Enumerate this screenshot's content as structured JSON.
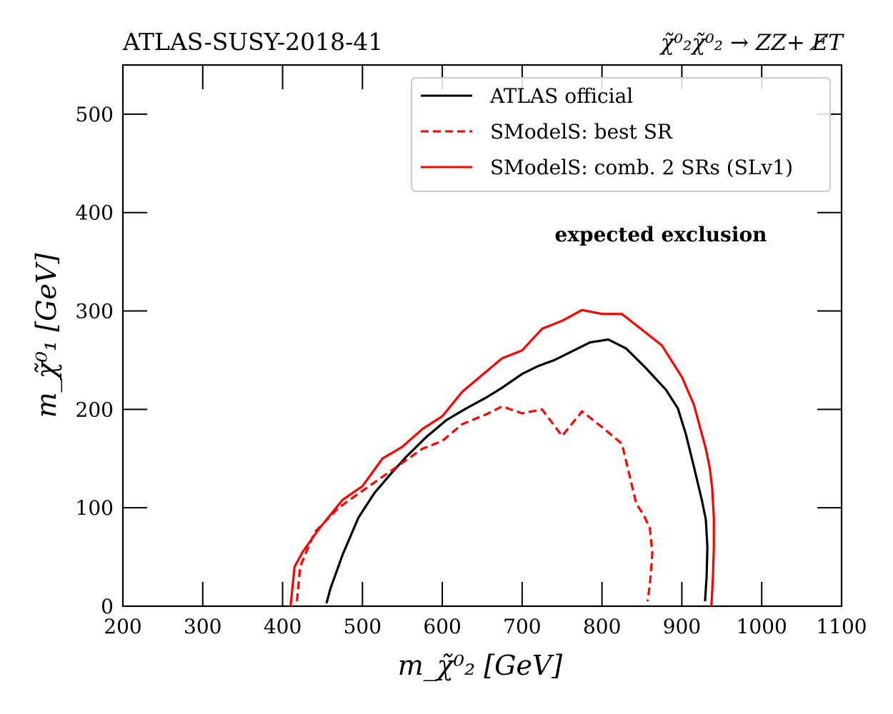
{
  "chart_data": {
    "type": "line",
    "title_left": "ATLAS-SUSY-2018-41",
    "title_right": "χ̃⁰₂χ̃⁰₂ → ZZ+ E̸T",
    "xlabel": "m_χ̃⁰₂ [GeV]",
    "ylabel": "m_χ̃⁰₁ [GeV]",
    "xlim": [
      200,
      1100
    ],
    "ylim": [
      0,
      550
    ],
    "xticks": [
      200,
      300,
      400,
      500,
      600,
      700,
      800,
      900,
      1000,
      1100
    ],
    "yticks": [
      0,
      100,
      200,
      300,
      400,
      500
    ],
    "annotation": "expected exclusion",
    "legend_position": "top-right",
    "series": [
      {
        "name": "ATLAS official",
        "color": "#000000",
        "style": "solid",
        "x": [
          455,
          460,
          475,
          495,
          515,
          535,
          555,
          580,
          605,
          630,
          655,
          675,
          700,
          720,
          740,
          760,
          785,
          808,
          830,
          855,
          880,
          895,
          905,
          915,
          925,
          930,
          932,
          931,
          929
        ],
        "y": [
          3,
          18,
          52,
          90,
          115,
          134,
          152,
          172,
          189,
          201,
          212,
          222,
          236,
          244,
          250,
          258,
          268,
          271,
          262,
          242,
          220,
          201,
          175,
          142,
          108,
          88,
          60,
          30,
          5
        ]
      },
      {
        "name": "SModelS: best SR",
        "color": "#ff0000",
        "style": "dashed",
        "x": [
          418,
          422,
          440,
          470,
          505,
          540,
          575,
          600,
          625,
          655,
          675,
          700,
          725,
          750,
          775,
          800,
          825,
          843,
          852,
          860,
          863,
          860,
          857
        ],
        "y": [
          5,
          40,
          75,
          100,
          120,
          140,
          160,
          168,
          185,
          195,
          203,
          196,
          200,
          173,
          198,
          182,
          165,
          104,
          93,
          79,
          54,
          22,
          5
        ]
      },
      {
        "name": "SModelS: comb. 2 SRs (SLv1)",
        "color": "#ff0000",
        "style": "solid",
        "x": [
          410,
          415,
          425,
          445,
          475,
          500,
          525,
          550,
          575,
          600,
          625,
          650,
          675,
          700,
          725,
          750,
          775,
          800,
          825,
          875,
          900,
          915,
          930,
          935,
          938,
          940,
          940,
          939,
          937
        ],
        "y": [
          0,
          40,
          55,
          78,
          108,
          122,
          150,
          162,
          180,
          193,
          218,
          235,
          252,
          260,
          282,
          290,
          301,
          297,
          297,
          265,
          233,
          205,
          160,
          140,
          120,
          90,
          60,
          30,
          0
        ]
      }
    ]
  }
}
